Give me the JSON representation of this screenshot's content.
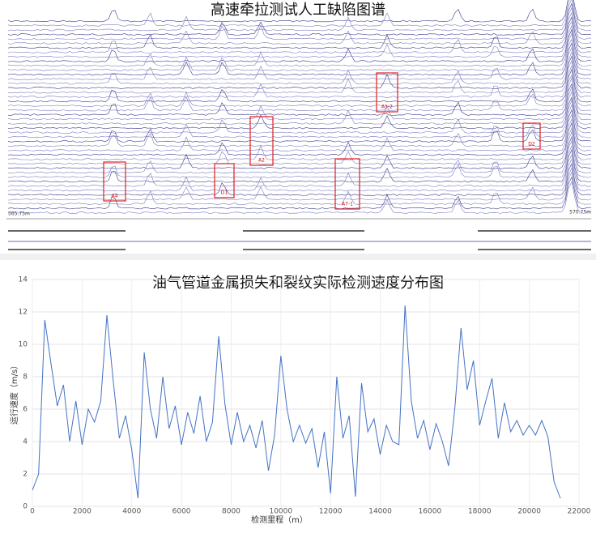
{
  "spectrum": {
    "title": "高速牵拉测试人工缺陷图谱",
    "start_label": "565.75m",
    "end_label": "570.75m",
    "defects": [
      "A4",
      "D1",
      "A2",
      "A7-1",
      "A1-2",
      "D2"
    ]
  },
  "chart_data": {
    "type": "line",
    "title": "油气管道金属损失和裂纹实际检测速度分布图",
    "x_label": "检测里程（m）",
    "y_label": "运行速度（m/s）",
    "xlim": [
      0,
      22000
    ],
    "xticks": [
      0,
      2000,
      4000,
      6000,
      8000,
      10000,
      12000,
      14000,
      16000,
      18000,
      20000,
      22000
    ],
    "ylim": [
      0,
      14
    ],
    "yticks": [
      0,
      2,
      4,
      6,
      8,
      10,
      12,
      14
    ],
    "grid": true,
    "x": [
      0,
      250,
      500,
      750,
      1000,
      1250,
      1500,
      1750,
      2000,
      2250,
      2500,
      2750,
      3000,
      3250,
      3500,
      3750,
      4000,
      4250,
      4500,
      4750,
      5000,
      5250,
      5500,
      5750,
      6000,
      6250,
      6500,
      6750,
      7000,
      7250,
      7500,
      7750,
      8000,
      8250,
      8500,
      8750,
      9000,
      9250,
      9500,
      9750,
      10000,
      10250,
      10500,
      10750,
      11000,
      11250,
      11500,
      11750,
      12000,
      12250,
      12500,
      12750,
      13000,
      13250,
      13500,
      13750,
      14000,
      14250,
      14500,
      14750,
      15000,
      15250,
      15500,
      15750,
      16000,
      16250,
      16500,
      16750,
      17000,
      17250,
      17500,
      17750,
      18000,
      18250,
      18500,
      18750,
      19000,
      19250,
      19500,
      19750,
      20000,
      20250,
      20500,
      20750,
      21000,
      21250
    ],
    "series": [
      {
        "color": "#4472c4",
        "values": [
          1.0,
          2.0,
          11.5,
          8.8,
          6.2,
          7.5,
          4.0,
          6.5,
          3.8,
          6.0,
          5.2,
          6.5,
          11.8,
          7.8,
          4.2,
          5.6,
          3.5,
          0.5,
          9.5,
          6.0,
          4.2,
          8.0,
          4.8,
          6.2,
          3.8,
          5.8,
          4.5,
          6.8,
          4.0,
          5.2,
          10.5,
          6.3,
          3.8,
          5.8,
          4.0,
          5.0,
          3.6,
          5.3,
          2.2,
          4.4,
          9.3,
          6.0,
          4.0,
          5.0,
          3.9,
          4.8,
          2.4,
          4.6,
          0.8,
          8.0,
          4.2,
          5.6,
          0.6,
          7.6,
          4.6,
          5.4,
          3.2,
          5.0,
          4.0,
          3.8,
          12.4,
          6.5,
          4.2,
          5.3,
          3.5,
          5.1,
          4.0,
          2.5,
          6.0,
          11.0,
          7.2,
          9.0,
          5.0,
          6.5,
          7.9,
          4.2,
          6.4,
          4.6,
          5.3,
          4.4,
          5.0,
          4.4,
          5.3,
          4.3,
          1.5,
          0.5
        ]
      }
    ]
  }
}
